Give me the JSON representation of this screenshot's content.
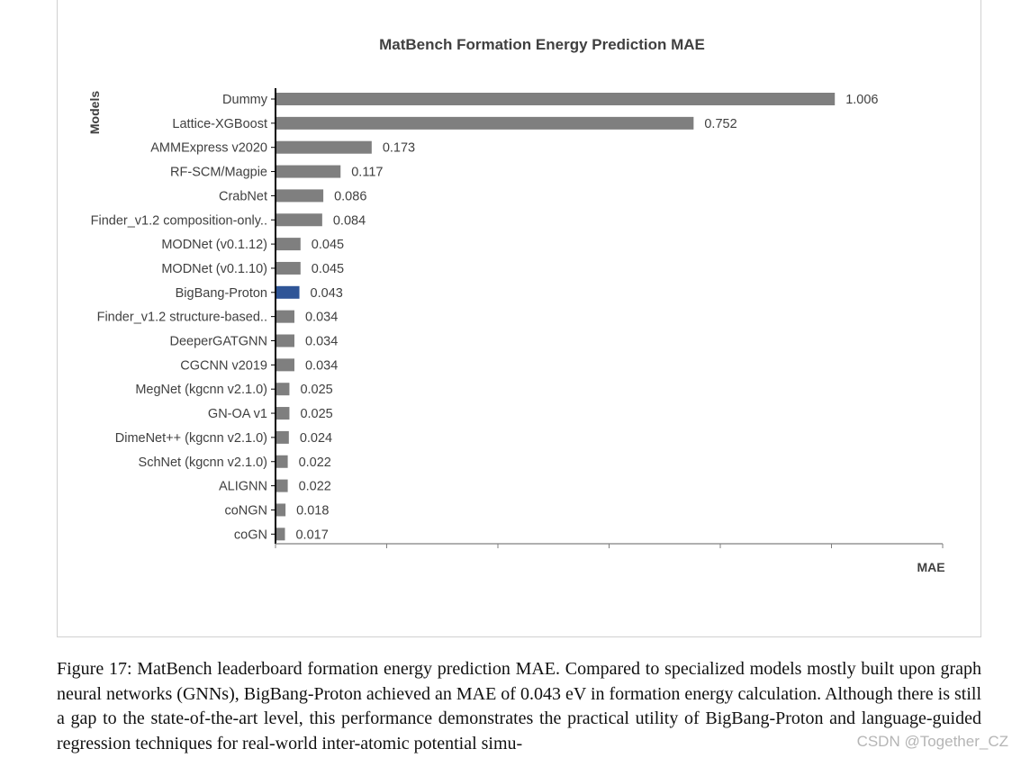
{
  "chart_data": {
    "type": "bar",
    "orientation": "horizontal",
    "title": "MatBench Formation Energy Prediction MAE",
    "ylabel": "Models",
    "xlabel": "MAE",
    "xlim": [
      0,
      1.2
    ],
    "grid": false,
    "legend": "none",
    "categories": [
      "Dummy",
      "Lattice-XGBoost",
      "AMMExpress v2020",
      "RF-SCM/Magpie",
      "CrabNet",
      "Finder_v1.2  composition-only..",
      "MODNet (v0.1.12)",
      "MODNet (v0.1.10)",
      "BigBang-Proton",
      "Finder_v1.2 structure-based..",
      "DeeperGATGNN",
      "CGCNN v2019",
      "MegNet (kgcnn v2.1.0)",
      "GN-OA v1",
      "DimeNet++ (kgcnn v2.1.0)",
      "SchNet (kgcnn v2.1.0)",
      "ALIGNN",
      "coNGN",
      "coGN"
    ],
    "values": [
      1.006,
      0.752,
      0.173,
      0.117,
      0.086,
      0.084,
      0.045,
      0.045,
      0.043,
      0.034,
      0.034,
      0.034,
      0.025,
      0.025,
      0.024,
      0.022,
      0.022,
      0.018,
      0.017
    ],
    "value_labels": [
      "1.006",
      "0.752",
      "0.173",
      "0.117",
      "0.086",
      "0.084",
      "0.045",
      "0.045",
      "0.043",
      "0.034",
      "0.034",
      "0.034",
      "0.025",
      "0.025",
      "0.024",
      "0.022",
      "0.022",
      "0.018",
      "0.017"
    ],
    "highlight": "BigBang-Proton",
    "colors": {
      "bar": "#7f7f7f",
      "highlight": "#2f5597",
      "axis": "#000000",
      "text": "#404040"
    }
  },
  "caption": "Figure 17: MatBench leaderboard formation energy prediction MAE. Compared to specialized models mostly built upon graph neural networks (GNNs), BigBang-Proton achieved an MAE of 0.043 eV in formation energy calculation. Although there is still a gap to the state-of-the-art level, this performance demonstrates the practical utility of BigBang-Proton and language-guided regression techniques for real-world inter-atomic potential simu-",
  "watermark": "CSDN @Together_CZ"
}
